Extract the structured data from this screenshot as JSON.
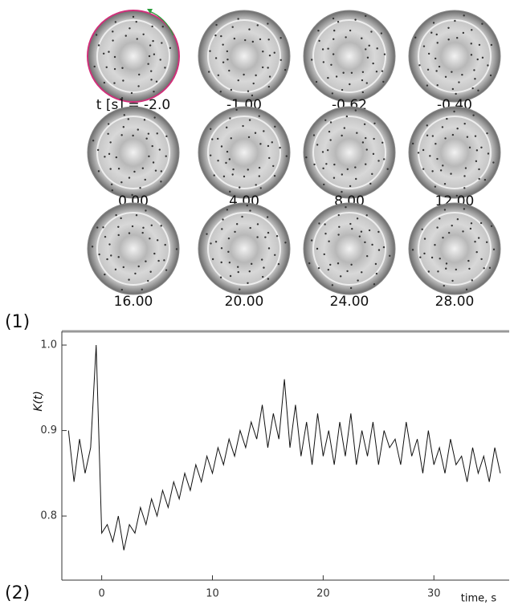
{
  "figure": {
    "panel_labels": [
      "(1)",
      "(2)"
    ],
    "frames": [
      "t [s] = -2.0",
      "-1.00",
      "-0.62",
      "-0.40",
      "0.00",
      "4.00",
      "8.00",
      "12.00",
      "16.00",
      "20.00",
      "24.00",
      "28.00"
    ]
  },
  "chart_data": {
    "type": "line",
    "y_label": "K(t)",
    "x_label": "time, s",
    "x": [
      -3.0,
      -2.5,
      -2.0,
      -1.5,
      -1.0,
      -0.5,
      0.0,
      0.5,
      1.0,
      1.5,
      2.0,
      2.5,
      3.0,
      3.5,
      4.0,
      4.5,
      5.0,
      5.5,
      6.0,
      6.5,
      7.0,
      7.5,
      8.0,
      8.5,
      9.0,
      9.5,
      10.0,
      10.5,
      11.0,
      11.5,
      12.0,
      12.5,
      13.0,
      13.5,
      14.0,
      14.5,
      15.0,
      15.5,
      16.0,
      16.5,
      17.0,
      17.5,
      18.0,
      18.5,
      19.0,
      19.5,
      20.0,
      20.5,
      21.0,
      21.5,
      22.0,
      22.5,
      23.0,
      23.5,
      24.0,
      24.5,
      25.0,
      25.5,
      26.0,
      26.5,
      27.0,
      27.5,
      28.0,
      28.5,
      29.0,
      29.5,
      30.0,
      30.5,
      31.0,
      31.5,
      32.0,
      32.5,
      33.0,
      33.5,
      34.0,
      34.5,
      35.0,
      35.5,
      36.0
    ],
    "series": [
      {
        "name": "K(t)",
        "color": "#111111",
        "values": [
          0.9,
          0.84,
          0.89,
          0.85,
          0.88,
          1.0,
          0.78,
          0.79,
          0.77,
          0.8,
          0.76,
          0.79,
          0.78,
          0.81,
          0.79,
          0.82,
          0.8,
          0.83,
          0.81,
          0.84,
          0.82,
          0.85,
          0.83,
          0.86,
          0.84,
          0.87,
          0.85,
          0.88,
          0.86,
          0.89,
          0.87,
          0.9,
          0.88,
          0.91,
          0.89,
          0.93,
          0.88,
          0.92,
          0.89,
          0.96,
          0.88,
          0.93,
          0.87,
          0.91,
          0.86,
          0.92,
          0.87,
          0.9,
          0.86,
          0.91,
          0.87,
          0.92,
          0.86,
          0.9,
          0.87,
          0.91,
          0.86,
          0.9,
          0.88,
          0.89,
          0.86,
          0.91,
          0.87,
          0.89,
          0.85,
          0.9,
          0.86,
          0.88,
          0.85,
          0.89,
          0.86,
          0.87,
          0.84,
          0.88,
          0.85,
          0.87,
          0.84,
          0.88,
          0.85
        ]
      }
    ],
    "xlim": [
      -3.6,
      36.8
    ],
    "ylim": [
      0.725,
      1.016
    ],
    "xticks": [
      0,
      10,
      20,
      30
    ],
    "yticks": [
      {
        "value": 0.8,
        "label": "0.8"
      },
      {
        "value": 0.9,
        "label": "0.9"
      },
      {
        "value": 1.0,
        "label": "1.0"
      }
    ]
  }
}
